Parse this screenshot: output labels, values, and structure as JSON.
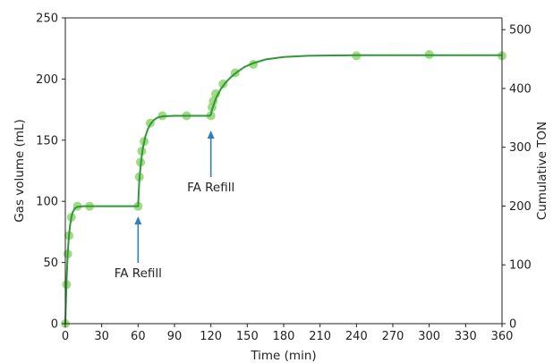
{
  "chart_data": {
    "type": "scatter",
    "xlabel": "Time (min)",
    "ylabel": "Gas volume (mL)",
    "y2label": "Cumulative TON",
    "xlim": [
      0,
      360
    ],
    "ylim": [
      0,
      250
    ],
    "y2lim": [
      0,
      520
    ],
    "xticks": [
      0,
      30,
      60,
      90,
      120,
      150,
      180,
      210,
      240,
      270,
      300,
      330,
      360
    ],
    "yticks": [
      0,
      50,
      100,
      150,
      200,
      250
    ],
    "y2ticks": [
      0,
      100,
      200,
      300,
      400,
      500
    ],
    "grid": false,
    "colors": {
      "points": "#8fd46e",
      "line": "#2e9a35",
      "arrow": "#2f7fbd",
      "axis": "#222222"
    },
    "series": [
      {
        "kind": "scatter",
        "points": [
          [
            0,
            0
          ],
          [
            1,
            32
          ],
          [
            2,
            57
          ],
          [
            3,
            72
          ],
          [
            5,
            87
          ],
          [
            10,
            96
          ],
          [
            20,
            96
          ],
          [
            60,
            96
          ],
          [
            61,
            120
          ],
          [
            62,
            132
          ],
          [
            63,
            141
          ],
          [
            65,
            149
          ],
          [
            70,
            164
          ],
          [
            80,
            170
          ],
          [
            100,
            170
          ],
          [
            120,
            170
          ],
          [
            121,
            177
          ],
          [
            122,
            182
          ],
          [
            124,
            188
          ],
          [
            130,
            196
          ],
          [
            140,
            205
          ],
          [
            155,
            212
          ],
          [
            240,
            219
          ],
          [
            300,
            220
          ],
          [
            360,
            219
          ]
        ]
      },
      {
        "kind": "line",
        "points": [
          [
            0,
            0
          ],
          [
            1,
            35
          ],
          [
            2,
            58
          ],
          [
            3,
            72
          ],
          [
            4,
            81
          ],
          [
            5,
            87
          ],
          [
            6,
            91
          ],
          [
            8,
            94.5
          ],
          [
            10,
            95.5
          ],
          [
            15,
            96
          ],
          [
            30,
            96
          ],
          [
            60,
            96
          ],
          [
            60.5,
            107
          ],
          [
            61,
            117
          ],
          [
            62,
            128
          ],
          [
            63,
            137
          ],
          [
            64,
            144
          ],
          [
            66,
            153
          ],
          [
            68,
            159
          ],
          [
            70,
            163
          ],
          [
            73,
            166.5
          ],
          [
            76,
            168.5
          ],
          [
            80,
            169.5
          ],
          [
            90,
            170
          ],
          [
            119,
            170
          ],
          [
            120,
            171
          ],
          [
            121,
            175
          ],
          [
            123,
            181
          ],
          [
            125,
            186
          ],
          [
            128,
            191.5
          ],
          [
            132,
            197
          ],
          [
            137,
            202
          ],
          [
            142,
            206
          ],
          [
            148,
            210
          ],
          [
            155,
            213
          ],
          [
            165,
            216
          ],
          [
            180,
            218
          ],
          [
            200,
            219
          ],
          [
            240,
            219.5
          ],
          [
            300,
            219.5
          ],
          [
            360,
            219.5
          ]
        ]
      }
    ],
    "annotations": [
      {
        "text": "FA Refill",
        "x": 60
      },
      {
        "text": "FA Refill",
        "x": 120
      }
    ]
  }
}
